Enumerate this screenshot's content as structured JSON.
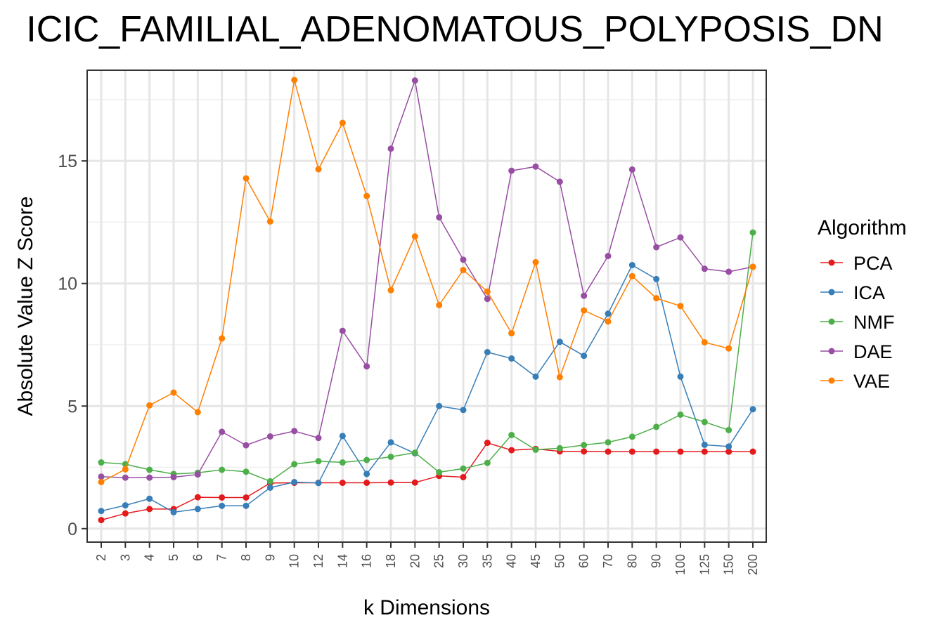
{
  "chart_data": {
    "type": "line",
    "title": "ICIC_FAMILIAL_ADENOMATOUS_POLYPOSIS_DN",
    "xlabel": "k Dimensions",
    "ylabel": "Absolute Value Z Score",
    "legend_title": "Algorithm",
    "legend_position": "right",
    "grid": true,
    "categories": [
      "2",
      "3",
      "4",
      "5",
      "6",
      "7",
      "8",
      "9",
      "10",
      "12",
      "14",
      "16",
      "18",
      "20",
      "25",
      "30",
      "35",
      "40",
      "45",
      "50",
      "60",
      "70",
      "80",
      "90",
      "100",
      "125",
      "150",
      "200"
    ],
    "y_ticks": [
      0,
      5,
      10,
      15
    ],
    "ylim": [
      -0.55,
      18.7
    ],
    "series": [
      {
        "name": "PCA",
        "color": "#e41a1c",
        "values": [
          0.35,
          0.62,
          0.8,
          0.8,
          1.28,
          1.27,
          1.27,
          1.86,
          1.87,
          1.87,
          1.87,
          1.87,
          1.88,
          1.88,
          2.15,
          2.1,
          3.5,
          3.2,
          3.25,
          3.15,
          3.15,
          3.14,
          3.14,
          3.14,
          3.14,
          3.14,
          3.14,
          3.14
        ]
      },
      {
        "name": "ICA",
        "color": "#377eb8",
        "values": [
          0.72,
          0.95,
          1.22,
          0.67,
          0.8,
          0.93,
          0.93,
          1.67,
          1.9,
          1.86,
          3.78,
          2.23,
          3.52,
          3.07,
          5.0,
          4.84,
          7.2,
          6.94,
          6.2,
          7.62,
          7.05,
          8.77,
          10.75,
          10.18,
          6.2,
          3.42,
          3.35,
          4.87
        ]
      },
      {
        "name": "NMF",
        "color": "#4daf4a",
        "values": [
          2.7,
          2.63,
          2.4,
          2.23,
          2.28,
          2.4,
          2.32,
          1.93,
          2.63,
          2.75,
          2.7,
          2.8,
          2.93,
          3.1,
          2.3,
          2.45,
          2.68,
          3.82,
          3.22,
          3.28,
          3.41,
          3.52,
          3.75,
          4.15,
          4.65,
          4.35,
          4.02,
          12.08
        ]
      },
      {
        "name": "DAE",
        "color": "#984ea3",
        "values": [
          2.12,
          2.08,
          2.08,
          2.1,
          2.21,
          3.95,
          3.4,
          3.76,
          3.98,
          3.7,
          8.07,
          6.62,
          15.5,
          18.28,
          12.7,
          10.97,
          9.37,
          14.6,
          14.77,
          14.15,
          9.5,
          11.12,
          14.65,
          11.48,
          11.88,
          10.6,
          10.48,
          10.68
        ]
      },
      {
        "name": "VAE",
        "color": "#ff7f00",
        "values": [
          1.9,
          2.42,
          5.03,
          5.55,
          4.75,
          7.76,
          14.29,
          12.53,
          18.3,
          14.66,
          16.55,
          13.57,
          9.73,
          11.92,
          9.12,
          10.55,
          9.67,
          7.97,
          10.87,
          6.18,
          8.9,
          8.45,
          10.3,
          9.4,
          9.08,
          7.6,
          7.35,
          10.68
        ]
      }
    ]
  }
}
